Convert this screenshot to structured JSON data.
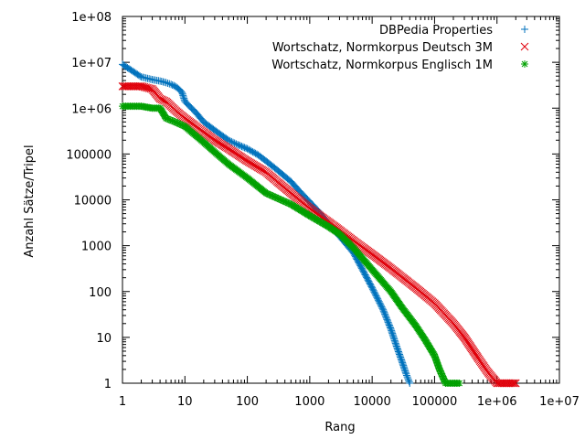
{
  "chart_data": {
    "type": "scatter",
    "title": "",
    "xlabel": "Rang",
    "ylabel": "Anzahl Sätze/Tripel",
    "x_scale": "log",
    "y_scale": "log",
    "xlim": [
      1,
      10000000
    ],
    "ylim": [
      1,
      100000000
    ],
    "grid": false,
    "legend_position": "top-right",
    "x_tick_labels": [
      "1",
      "10",
      "100",
      "1000",
      "10000",
      "100000",
      "1e+06",
      "1e+07"
    ],
    "x_tick_values": [
      1,
      10,
      100,
      1000,
      10000,
      100000,
      1000000,
      10000000
    ],
    "y_tick_labels": [
      "1",
      "10",
      "100",
      "1000",
      "10000",
      "100000",
      "1e+06",
      "1e+07",
      "1e+08"
    ],
    "y_tick_values": [
      1,
      10,
      100,
      1000,
      10000,
      100000,
      1000000,
      10000000,
      100000000
    ],
    "series": [
      {
        "name": "DBPedia Properties",
        "marker": "plus",
        "color": "#0072bd",
        "points": [
          [
            1,
            9000000
          ],
          [
            2,
            4800000
          ],
          [
            3,
            4200000
          ],
          [
            4,
            3900000
          ],
          [
            5,
            3600000
          ],
          [
            6,
            3300000
          ],
          [
            7,
            3000000
          ],
          [
            8,
            2600000
          ],
          [
            9,
            2200000
          ],
          [
            10,
            1400000
          ],
          [
            15,
            800000
          ],
          [
            20,
            500000
          ],
          [
            30,
            330000
          ],
          [
            50,
            200000
          ],
          [
            70,
            160000
          ],
          [
            100,
            130000
          ],
          [
            150,
            95000
          ],
          [
            200,
            70000
          ],
          [
            300,
            45000
          ],
          [
            500,
            25000
          ],
          [
            700,
            15000
          ],
          [
            1000,
            9000
          ],
          [
            1500,
            5000
          ],
          [
            2000,
            3000
          ],
          [
            3000,
            1600
          ],
          [
            5000,
            700
          ],
          [
            7000,
            300
          ],
          [
            10000,
            120
          ],
          [
            15000,
            40
          ],
          [
            20000,
            15
          ],
          [
            25000,
            6
          ],
          [
            30000,
            3
          ],
          [
            35000,
            1.6
          ],
          [
            40000,
            1
          ]
        ]
      },
      {
        "name": "Wortschatz, Normkorpus Deutsch 3M",
        "marker": "cross",
        "color": "#e0000b",
        "points": [
          [
            1,
            3000000
          ],
          [
            2,
            3000000
          ],
          [
            3,
            2600000
          ],
          [
            4,
            1600000
          ],
          [
            5,
            1400000
          ],
          [
            7,
            900000
          ],
          [
            10,
            600000
          ],
          [
            20,
            300000
          ],
          [
            30,
            200000
          ],
          [
            50,
            130000
          ],
          [
            100,
            70000
          ],
          [
            200,
            40000
          ],
          [
            300,
            25000
          ],
          [
            500,
            14000
          ],
          [
            1000,
            6500
          ],
          [
            2000,
            3300
          ],
          [
            3000,
            2200
          ],
          [
            5000,
            1300
          ],
          [
            10000,
            650
          ],
          [
            20000,
            320
          ],
          [
            50000,
            120
          ],
          [
            100000,
            55
          ],
          [
            200000,
            20
          ],
          [
            300000,
            10
          ],
          [
            500000,
            3.5
          ],
          [
            700000,
            1.8
          ],
          [
            1000000,
            1
          ],
          [
            1500000,
            1
          ],
          [
            2000000,
            1
          ]
        ]
      },
      {
        "name": "Wortschatz, Normkorpus Englisch 1M",
        "marker": "star",
        "color": "#00a000",
        "points": [
          [
            1,
            1100000
          ],
          [
            2,
            1100000
          ],
          [
            3,
            1000000
          ],
          [
            4,
            1000000
          ],
          [
            5,
            600000
          ],
          [
            7,
            500000
          ],
          [
            10,
            400000
          ],
          [
            20,
            180000
          ],
          [
            30,
            110000
          ],
          [
            50,
            60000
          ],
          [
            100,
            30000
          ],
          [
            200,
            14000
          ],
          [
            500,
            8000
          ],
          [
            1000,
            4500
          ],
          [
            2000,
            2600
          ],
          [
            3000,
            1800
          ],
          [
            5000,
            900
          ],
          [
            10000,
            300
          ],
          [
            20000,
            100
          ],
          [
            30000,
            45
          ],
          [
            50000,
            18
          ],
          [
            70000,
            9
          ],
          [
            100000,
            4
          ],
          [
            120000,
            2
          ],
          [
            150000,
            1
          ],
          [
            200000,
            1
          ],
          [
            250000,
            1
          ]
        ]
      }
    ]
  }
}
